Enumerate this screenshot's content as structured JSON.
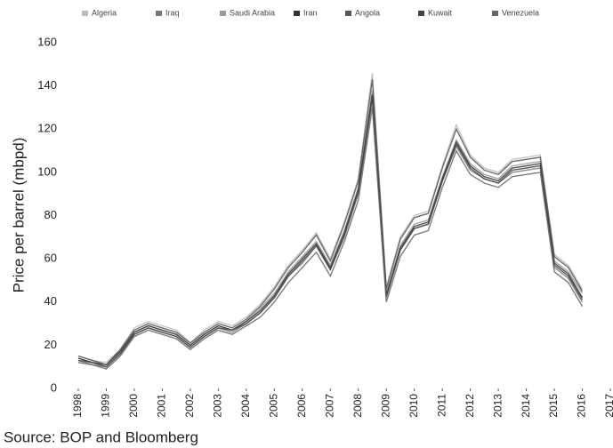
{
  "chart_data": {
    "type": "line",
    "ylabel": "Price per barrel (mbpd)",
    "source": "Source: BOP and Bloomberg",
    "x": [
      1998,
      1998.5,
      1999,
      1999.5,
      2000,
      2000.5,
      2001,
      2001.5,
      2002,
      2002.5,
      2003,
      2003.5,
      2004,
      2004.5,
      2005,
      2005.5,
      2006,
      2006.5,
      2007,
      2007.5,
      2008,
      2008.5,
      2009,
      2009.5,
      2010,
      2010.5,
      2011,
      2011.5,
      2012,
      2012.5,
      2013,
      2013.5,
      2014,
      2014.5,
      2015,
      2015.5,
      2016
    ],
    "series": [
      {
        "name": "Algeria",
        "color": "#bbbbbb",
        "values": [
          15,
          13,
          12,
          18,
          28,
          31,
          29,
          27,
          21,
          27,
          31,
          29,
          33,
          39,
          47,
          57,
          64,
          72,
          60,
          77,
          97,
          146,
          47,
          70,
          80,
          82,
          103,
          122,
          108,
          102,
          100,
          106,
          107,
          108,
          62,
          57,
          46
        ]
      },
      {
        "name": "Iraq",
        "color": "#777777",
        "values": [
          13,
          11,
          10,
          16,
          25,
          28,
          26,
          24,
          19,
          24,
          28,
          26,
          30,
          35,
          42,
          52,
          58,
          66,
          55,
          70,
          90,
          134,
          42,
          64,
          74,
          76,
          96,
          112,
          101,
          97,
          95,
          100,
          101,
          102,
          56,
          51,
          40
        ]
      },
      {
        "name": "Saudi Arabia",
        "color": "#999999",
        "values": [
          14,
          12,
          11,
          17,
          26,
          29,
          27,
          25,
          20,
          25,
          29,
          27,
          31,
          37,
          44,
          54,
          61,
          68,
          57,
          73,
          93,
          138,
          44,
          66,
          76,
          78,
          98,
          115,
          104,
          99,
          97,
          103,
          104,
          105,
          59,
          54,
          44
        ]
      },
      {
        "name": "Iran",
        "color": "#333333",
        "values": [
          14,
          12,
          11,
          17,
          26,
          29,
          27,
          25,
          20,
          25,
          29,
          27,
          31,
          36,
          43,
          53,
          60,
          67,
          56,
          72,
          92,
          136,
          43,
          65,
          75,
          77,
          97,
          114,
          103,
          98,
          96,
          102,
          103,
          104,
          58,
          53,
          42
        ]
      },
      {
        "name": "Angola",
        "color": "#555555",
        "values": [
          15,
          13,
          11,
          18,
          27,
          30,
          28,
          26,
          21,
          26,
          30,
          28,
          32,
          38,
          46,
          56,
          63,
          71,
          59,
          76,
          96,
          143,
          46,
          69,
          79,
          81,
          102,
          120,
          107,
          101,
          99,
          105,
          106,
          107,
          61,
          56,
          45
        ]
      },
      {
        "name": "Kuwait",
        "color": "#444444",
        "values": [
          13,
          12,
          10,
          16,
          25,
          28,
          26,
          24,
          19,
          24,
          28,
          27,
          30,
          35,
          42,
          52,
          59,
          66,
          55,
          71,
          91,
          135,
          43,
          64,
          74,
          76,
          96,
          113,
          102,
          97,
          95,
          101,
          102,
          103,
          57,
          52,
          41
        ]
      },
      {
        "name": "Venezuela",
        "color": "#666666",
        "values": [
          12,
          11,
          9,
          15,
          24,
          27,
          25,
          23,
          18,
          23,
          27,
          25,
          29,
          33,
          40,
          49,
          56,
          63,
          52,
          68,
          87,
          130,
          40,
          61,
          71,
          73,
          93,
          110,
          99,
          95,
          93,
          98,
          99,
          100,
          54,
          49,
          38
        ]
      }
    ],
    "xlim": [
      1998,
      2017
    ],
    "xticks": [
      1998,
      1999,
      2000,
      2001,
      2002,
      2003,
      2004,
      2005,
      2006,
      2007,
      2008,
      2009,
      2010,
      2011,
      2012,
      2013,
      2014,
      2015,
      2016,
      2017
    ],
    "ylim": [
      0,
      160
    ],
    "yticks": [
      0,
      20,
      40,
      60,
      80,
      100,
      120,
      140,
      160
    ],
    "legend": "top"
  }
}
